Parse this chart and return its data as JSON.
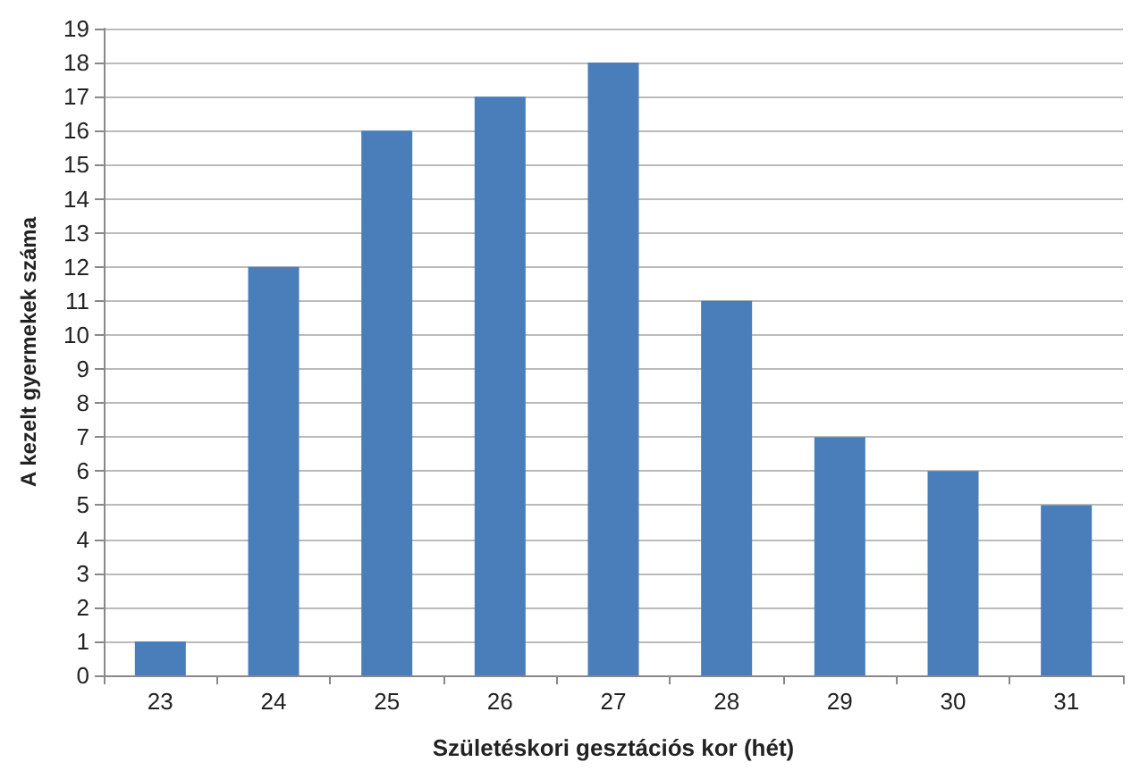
{
  "chart_data": {
    "type": "bar",
    "xlabel": "Születéskori gesztációs kor (hét)",
    "ylabel": "A kezelt gyermekek száma",
    "categories": [
      "23",
      "24",
      "25",
      "26",
      "27",
      "28",
      "29",
      "30",
      "31"
    ],
    "values": [
      1,
      12,
      16,
      17,
      18,
      11,
      7,
      6,
      5
    ],
    "color": "#4a7ebb",
    "ylim": [
      0,
      19
    ],
    "yticks": [
      0,
      1,
      2,
      3,
      4,
      5,
      6,
      7,
      8,
      9,
      10,
      11,
      12,
      13,
      14,
      15,
      16,
      17,
      18,
      19
    ],
    "grid": "y"
  }
}
